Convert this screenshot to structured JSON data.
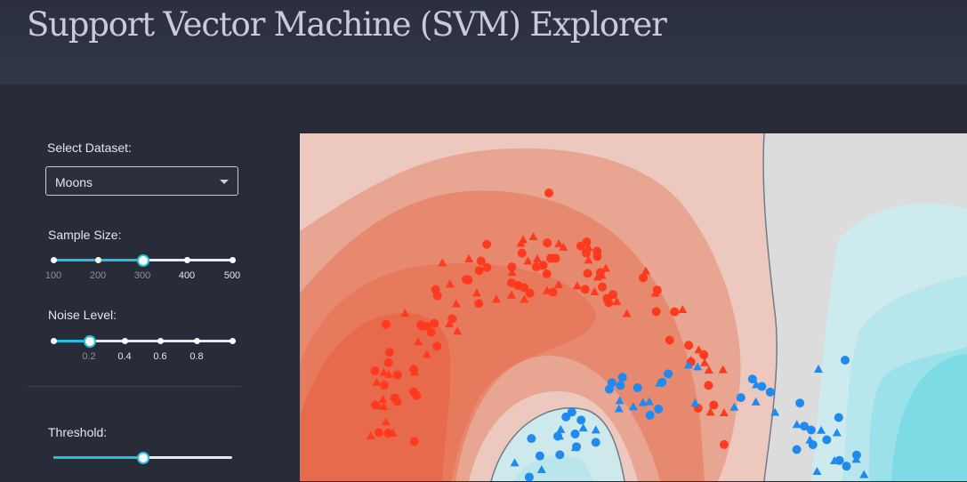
{
  "header": {
    "title": "Support Vector Machine (SVM) Explorer"
  },
  "sidebar": {
    "dataset_label": "Select Dataset:",
    "dataset_value": "Moons",
    "sample_size_label": "Sample Size:",
    "sample_size": {
      "value": 300,
      "marks": [
        "100",
        "200",
        "300",
        "400",
        "500"
      ]
    },
    "noise_label": "Noise Level:",
    "noise": {
      "value": 0.2,
      "marks": [
        "0.2",
        "0.4",
        "0.6",
        "0.8"
      ]
    },
    "threshold_label": "Threshold:",
    "threshold": {
      "value": 0.5
    }
  },
  "colors": {
    "accent": "#22bfe0",
    "class_red": "#ff3a1f",
    "class_blue": "#1e8af2",
    "header_bg": "#2f3546",
    "page_bg": "#282b38"
  }
}
